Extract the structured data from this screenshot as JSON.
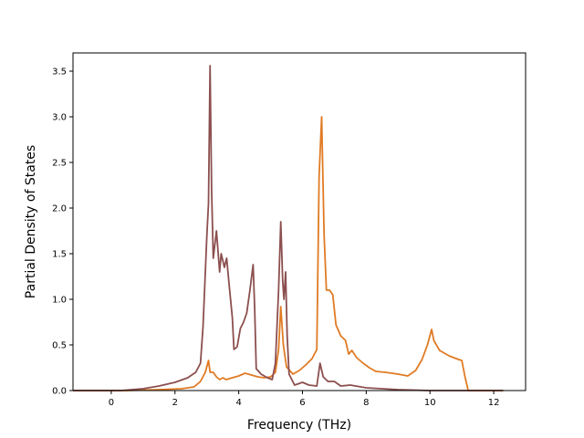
{
  "chart_data": {
    "type": "line",
    "title": "",
    "xlabel": "Frequency (THz)",
    "ylabel": "Partial Density of States",
    "xlim": [
      -1.2,
      13.0
    ],
    "ylim": [
      0.0,
      3.7
    ],
    "xticks": [
      0,
      2,
      4,
      6,
      8,
      10,
      12
    ],
    "yticks": [
      0.0,
      0.5,
      1.0,
      1.5,
      2.0,
      2.5,
      3.0,
      3.5
    ],
    "xtick_labels": [
      "0",
      "2",
      "4",
      "6",
      "8",
      "10",
      "12"
    ],
    "ytick_labels": [
      "0.0",
      "0.5",
      "1.0",
      "1.5",
      "2.0",
      "2.5",
      "3.0",
      "3.5"
    ],
    "grid": false,
    "legend": "none",
    "series": [
      {
        "color": "#e07b24",
        "points": [
          [
            -1.2,
            0.0
          ],
          [
            0.5,
            0.0
          ],
          [
            1.5,
            0.01
          ],
          [
            2.2,
            0.02
          ],
          [
            2.6,
            0.04
          ],
          [
            2.8,
            0.1
          ],
          [
            2.95,
            0.2
          ],
          [
            3.05,
            0.33
          ],
          [
            3.1,
            0.2
          ],
          [
            3.2,
            0.2
          ],
          [
            3.3,
            0.15
          ],
          [
            3.4,
            0.12
          ],
          [
            3.5,
            0.14
          ],
          [
            3.6,
            0.12
          ],
          [
            3.8,
            0.14
          ],
          [
            4.0,
            0.16
          ],
          [
            4.2,
            0.19
          ],
          [
            4.4,
            0.17
          ],
          [
            4.6,
            0.15
          ],
          [
            4.8,
            0.14
          ],
          [
            5.0,
            0.15
          ],
          [
            5.15,
            0.2
          ],
          [
            5.25,
            0.45
          ],
          [
            5.32,
            0.92
          ],
          [
            5.4,
            0.5
          ],
          [
            5.5,
            0.26
          ],
          [
            5.7,
            0.18
          ],
          [
            5.9,
            0.22
          ],
          [
            6.1,
            0.28
          ],
          [
            6.3,
            0.35
          ],
          [
            6.45,
            0.45
          ],
          [
            6.52,
            2.35
          ],
          [
            6.6,
            3.0
          ],
          [
            6.68,
            1.7
          ],
          [
            6.75,
            1.1
          ],
          [
            6.85,
            1.1
          ],
          [
            6.95,
            1.05
          ],
          [
            7.05,
            0.72
          ],
          [
            7.2,
            0.6
          ],
          [
            7.35,
            0.55
          ],
          [
            7.45,
            0.4
          ],
          [
            7.55,
            0.44
          ],
          [
            7.7,
            0.36
          ],
          [
            7.9,
            0.3
          ],
          [
            8.1,
            0.25
          ],
          [
            8.3,
            0.21
          ],
          [
            8.6,
            0.2
          ],
          [
            9.0,
            0.18
          ],
          [
            9.3,
            0.16
          ],
          [
            9.55,
            0.22
          ],
          [
            9.75,
            0.34
          ],
          [
            9.92,
            0.5
          ],
          [
            10.05,
            0.67
          ],
          [
            10.12,
            0.55
          ],
          [
            10.3,
            0.44
          ],
          [
            10.6,
            0.38
          ],
          [
            10.9,
            0.34
          ],
          [
            11.0,
            0.33
          ],
          [
            11.1,
            0.15
          ],
          [
            11.2,
            0.0
          ],
          [
            12.3,
            0.0
          ]
        ]
      },
      {
        "color": "#8c4f4f",
        "points": [
          [
            -1.2,
            0.0
          ],
          [
            0.3,
            0.0
          ],
          [
            1.0,
            0.02
          ],
          [
            1.5,
            0.05
          ],
          [
            2.0,
            0.09
          ],
          [
            2.4,
            0.14
          ],
          [
            2.65,
            0.2
          ],
          [
            2.8,
            0.3
          ],
          [
            2.88,
            0.7
          ],
          [
            3.0,
            1.7
          ],
          [
            3.05,
            2.05
          ],
          [
            3.1,
            3.56
          ],
          [
            3.15,
            2.2
          ],
          [
            3.2,
            1.45
          ],
          [
            3.3,
            1.75
          ],
          [
            3.4,
            1.3
          ],
          [
            3.45,
            1.5
          ],
          [
            3.55,
            1.35
          ],
          [
            3.62,
            1.45
          ],
          [
            3.7,
            1.15
          ],
          [
            3.8,
            0.8
          ],
          [
            3.85,
            0.45
          ],
          [
            3.95,
            0.48
          ],
          [
            4.05,
            0.68
          ],
          [
            4.15,
            0.75
          ],
          [
            4.25,
            0.85
          ],
          [
            4.35,
            1.1
          ],
          [
            4.45,
            1.38
          ],
          [
            4.5,
            0.9
          ],
          [
            4.55,
            0.24
          ],
          [
            4.7,
            0.18
          ],
          [
            4.9,
            0.14
          ],
          [
            5.05,
            0.12
          ],
          [
            5.15,
            0.3
          ],
          [
            5.25,
            1.1
          ],
          [
            5.32,
            1.85
          ],
          [
            5.38,
            1.2
          ],
          [
            5.42,
            1.0
          ],
          [
            5.47,
            1.3
          ],
          [
            5.52,
            0.6
          ],
          [
            5.58,
            0.18
          ],
          [
            5.75,
            0.06
          ],
          [
            6.0,
            0.09
          ],
          [
            6.2,
            0.06
          ],
          [
            6.45,
            0.05
          ],
          [
            6.55,
            0.3
          ],
          [
            6.65,
            0.15
          ],
          [
            6.8,
            0.1
          ],
          [
            7.0,
            0.1
          ],
          [
            7.2,
            0.05
          ],
          [
            7.5,
            0.06
          ],
          [
            8.0,
            0.03
          ],
          [
            8.5,
            0.02
          ],
          [
            9.0,
            0.01
          ],
          [
            10.0,
            0.0
          ],
          [
            12.3,
            0.0
          ]
        ]
      }
    ]
  }
}
